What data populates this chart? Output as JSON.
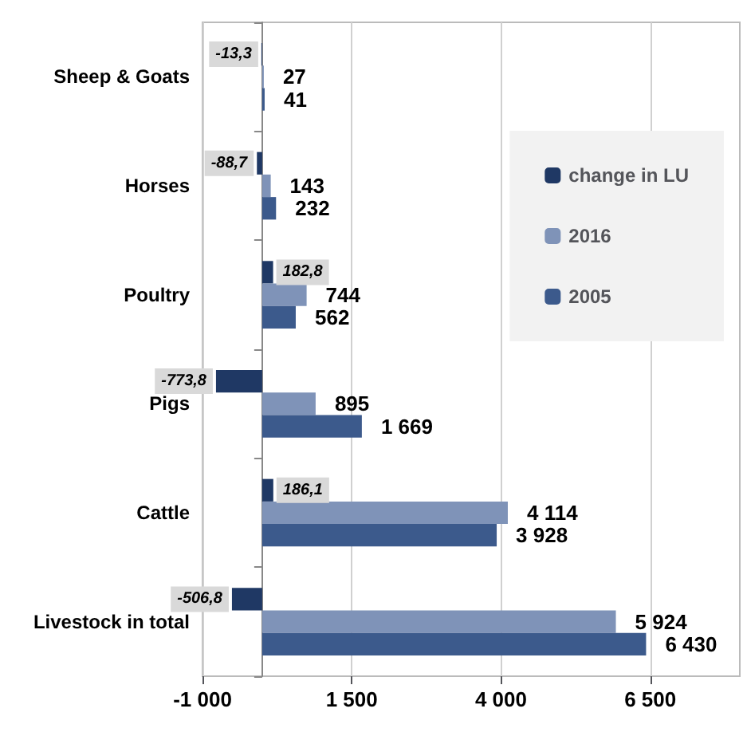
{
  "chart_data": {
    "type": "bar",
    "orientation": "horizontal",
    "categories": [
      "Sheep & Goats",
      "Horses",
      "Poultry",
      "Pigs",
      "Cattle",
      "Livestock in total"
    ],
    "series": [
      {
        "name": "change in LU",
        "color": "#1f3864",
        "values": [
          -13.3,
          -88.7,
          182.8,
          -773.8,
          186.1,
          -506.8
        ],
        "value_labels": [
          "-13,3",
          "-88,7",
          "182,8",
          "-773,8",
          "186,1",
          "-506,8"
        ]
      },
      {
        "name": "2016",
        "color": "#7f93b8",
        "values": [
          27,
          143,
          744,
          895,
          4114,
          5924
        ],
        "value_labels": [
          "27",
          "143",
          "744",
          "895",
          "4 114",
          "5 924"
        ]
      },
      {
        "name": "2005",
        "color": "#3c5a8c",
        "values": [
          41,
          232,
          562,
          1669,
          3928,
          6430
        ],
        "value_labels": [
          "41",
          "232",
          "562",
          "1 669",
          "3 928",
          "6 430"
        ]
      }
    ],
    "xlim": [
      -1000,
      8000
    ],
    "xticks": [
      {
        "value": -1000,
        "label": "-1 000"
      },
      {
        "value": 1500,
        "label": "1 500"
      },
      {
        "value": 4000,
        "label": "4 000"
      },
      {
        "value": 6500,
        "label": "6 500"
      }
    ],
    "grid": "x",
    "legend": "right"
  }
}
